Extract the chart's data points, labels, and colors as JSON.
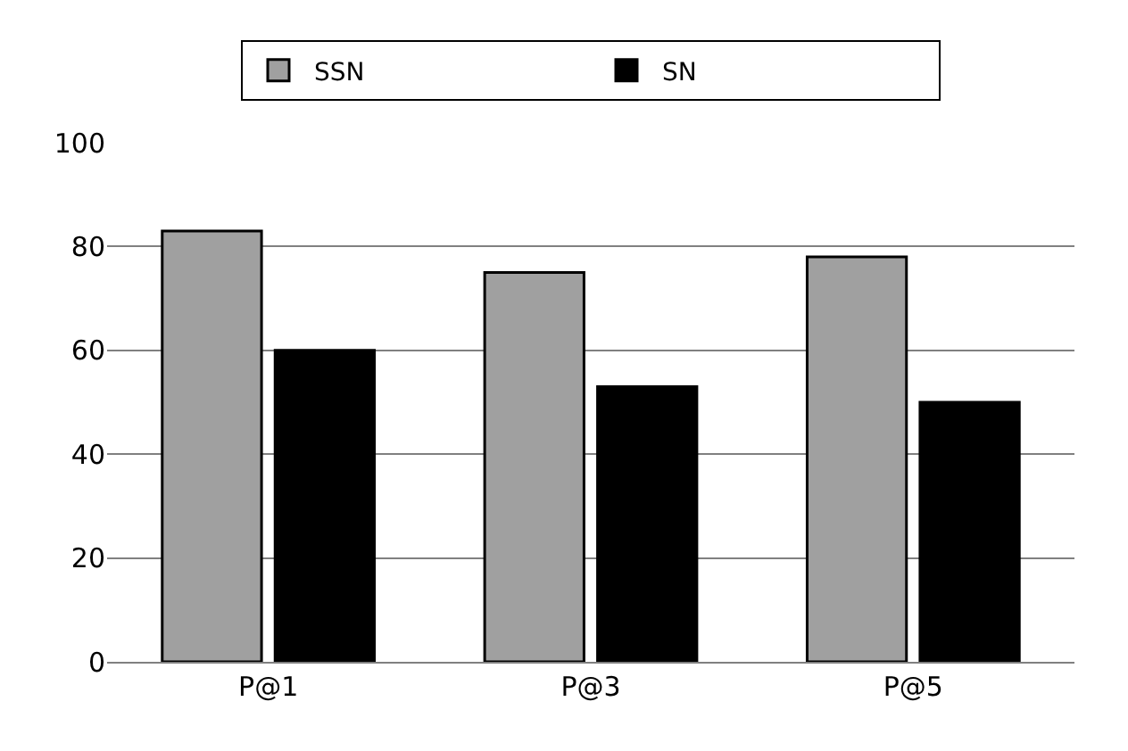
{
  "chart_data": {
    "type": "bar",
    "categories": [
      "P@1",
      "P@3",
      "P@5"
    ],
    "series": [
      {
        "name": "SSN",
        "color": "#a0a0a0",
        "values": [
          83,
          75,
          78
        ]
      },
      {
        "name": "SN",
        "color": "#000000",
        "values": [
          60,
          53,
          50
        ]
      }
    ],
    "ylim": [
      0,
      100
    ],
    "yticks": [
      0,
      20,
      40,
      60,
      80,
      100
    ],
    "grid": "y",
    "legend": "top"
  }
}
